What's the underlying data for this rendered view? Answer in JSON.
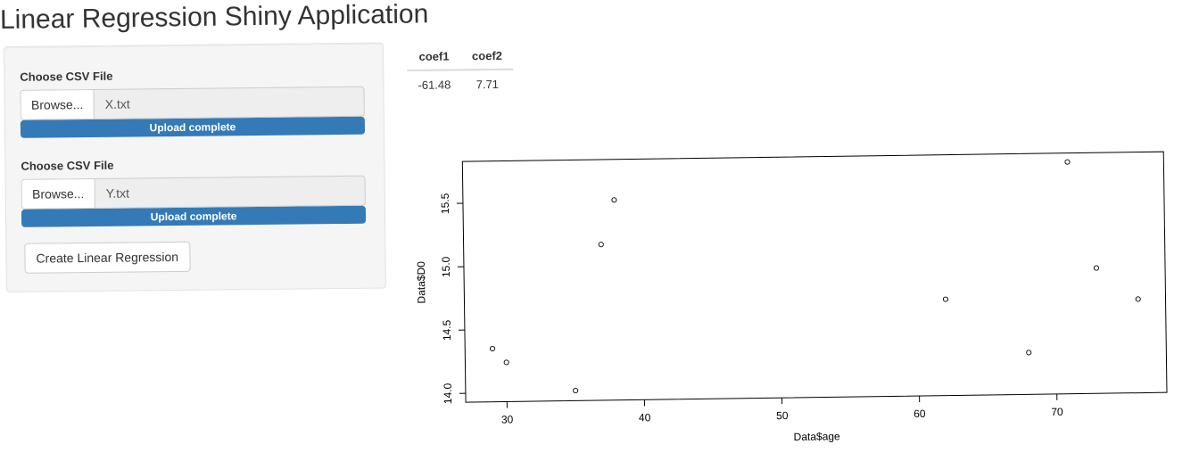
{
  "app": {
    "title": "Linear Regression Shiny Application"
  },
  "sidebar": {
    "file1": {
      "label": "Choose CSV File",
      "browse_label": "Browse...",
      "filename": "X.txt",
      "progress_text": "Upload complete"
    },
    "file2": {
      "label": "Choose CSV File",
      "browse_label": "Browse...",
      "filename": "Y.txt",
      "progress_text": "Upload complete"
    },
    "run_button_label": "Create Linear Regression"
  },
  "coefficients": {
    "headers": [
      "coef1",
      "coef2"
    ],
    "values": [
      "-61.48",
      "7.71"
    ]
  },
  "colors": {
    "progress": "#337ab7",
    "panel": "#f5f5f5"
  },
  "chart_data": {
    "type": "scatter",
    "title": "",
    "xlabel": "Data$age",
    "ylabel": "Data$D0",
    "xlim": [
      27,
      78
    ],
    "ylim": [
      13.93,
      15.83
    ],
    "xticks": [
      30,
      40,
      50,
      60,
      70
    ],
    "yticks": [
      14.0,
      14.5,
      15.0,
      15.5
    ],
    "ytick_labels": [
      "14.0",
      "14.5",
      "15.0",
      "15.5"
    ],
    "grid": false,
    "points": [
      {
        "x": 29,
        "y": 14.35
      },
      {
        "x": 30,
        "y": 14.24
      },
      {
        "x": 35,
        "y": 14.01
      },
      {
        "x": 37,
        "y": 15.16
      },
      {
        "x": 38,
        "y": 15.51
      },
      {
        "x": 62,
        "y": 14.69
      },
      {
        "x": 68,
        "y": 14.26
      },
      {
        "x": 71,
        "y": 15.76
      },
      {
        "x": 73,
        "y": 14.92
      },
      {
        "x": 76,
        "y": 14.67
      }
    ]
  }
}
